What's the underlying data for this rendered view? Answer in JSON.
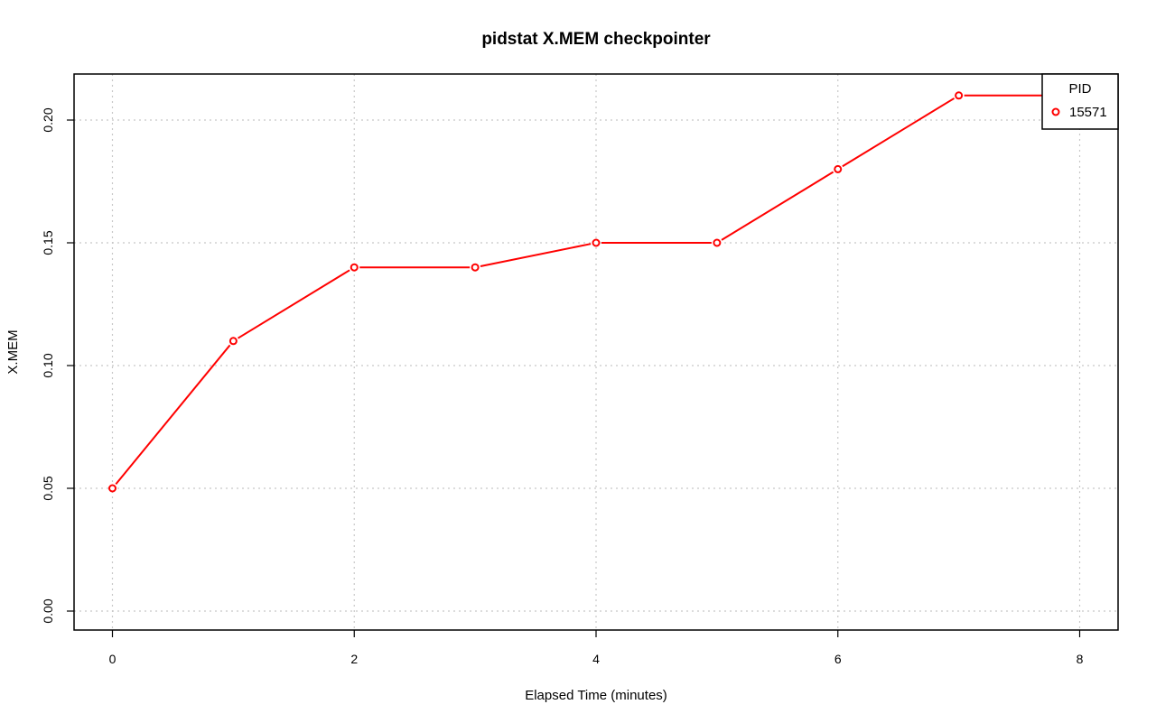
{
  "chart_data": {
    "type": "line",
    "title": "pidstat X.MEM checkpointer",
    "xlabel": "Elapsed Time (minutes)",
    "ylabel": "X.MEM",
    "xlim": [
      0,
      8
    ],
    "ylim": [
      0,
      0.2
    ],
    "x_ticks": [
      "0",
      "2",
      "4",
      "6",
      "8"
    ],
    "y_ticks": [
      "0.00",
      "0.05",
      "0.10",
      "0.15",
      "0.20"
    ],
    "grid": true,
    "legend": {
      "title": "PID",
      "placement": "top-right"
    },
    "series": [
      {
        "name": "15571",
        "color": "#ff0000",
        "x": [
          0,
          1,
          2,
          3,
          4,
          5,
          6,
          7,
          8
        ],
        "y": [
          0.05,
          0.11,
          0.14,
          0.14,
          0.15,
          0.15,
          0.18,
          0.21,
          0.21
        ]
      }
    ]
  }
}
